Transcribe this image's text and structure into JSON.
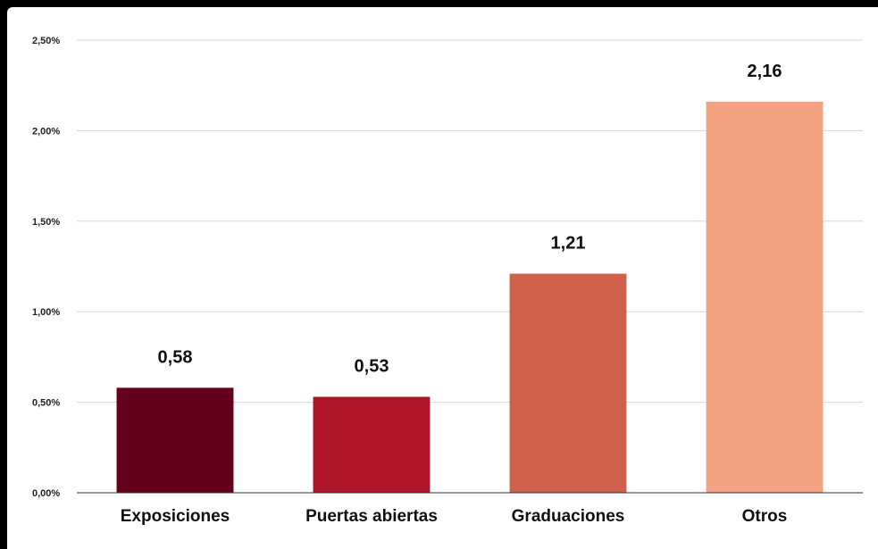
{
  "chart_data": {
    "type": "bar",
    "title": "",
    "xlabel": "",
    "ylabel": "",
    "categories": [
      "Exposiciones",
      "Puertas abiertas",
      "Graduaciones",
      "Otros"
    ],
    "values": [
      0.58,
      0.53,
      1.21,
      2.16
    ],
    "value_labels": [
      "0,58",
      "0,53",
      "1,21",
      "2,16"
    ],
    "bar_colors": [
      "#65001c",
      "#ae1528",
      "#d0614c",
      "#f3a382"
    ],
    "ylim": [
      0,
      2.5
    ],
    "y_ticks": [
      {
        "value": 0,
        "label": "0,00%"
      },
      {
        "value": 0.5,
        "label": "0,50%"
      },
      {
        "value": 1.0,
        "label": "1,00%"
      },
      {
        "value": 1.5,
        "label": "1,50%"
      },
      {
        "value": 2.0,
        "label": "2,00%"
      },
      {
        "value": 2.5,
        "label": "2,50%"
      }
    ],
    "grid": true,
    "legend": "none"
  }
}
